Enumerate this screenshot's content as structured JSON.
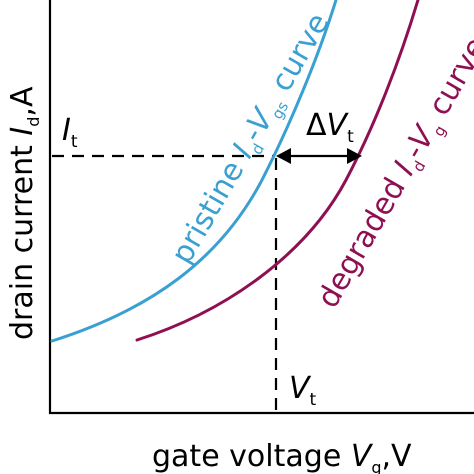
{
  "colors": {
    "pristine": "#3aa0d2",
    "degraded": "#8f1052",
    "axis": "#000000"
  },
  "axes": {
    "x_label": {
      "main": "gate voltage ",
      "var": "V",
      "sub": "g",
      "unit": ",V"
    },
    "y_label": {
      "main": "drain current ",
      "var": "I",
      "sub": "d",
      "unit": ",A"
    }
  },
  "markers": {
    "It": {
      "var": "I",
      "sub": "t"
    },
    "Vt": {
      "var": "V",
      "sub": "t"
    },
    "dVt": {
      "delta": "Δ",
      "var": "V",
      "sub": "t"
    }
  },
  "curves": {
    "pristine": {
      "lead": "pristine ",
      "i": "I",
      "i_sub": "d",
      "dash": "-",
      "v": "V",
      "v_sub": "gs",
      "tail": " curve"
    },
    "degraded": {
      "lead": "degraded ",
      "i": "I",
      "i_sub": "d",
      "dash": "-",
      "v": "V",
      "v_sub": "g",
      "tail": " curve"
    }
  }
}
